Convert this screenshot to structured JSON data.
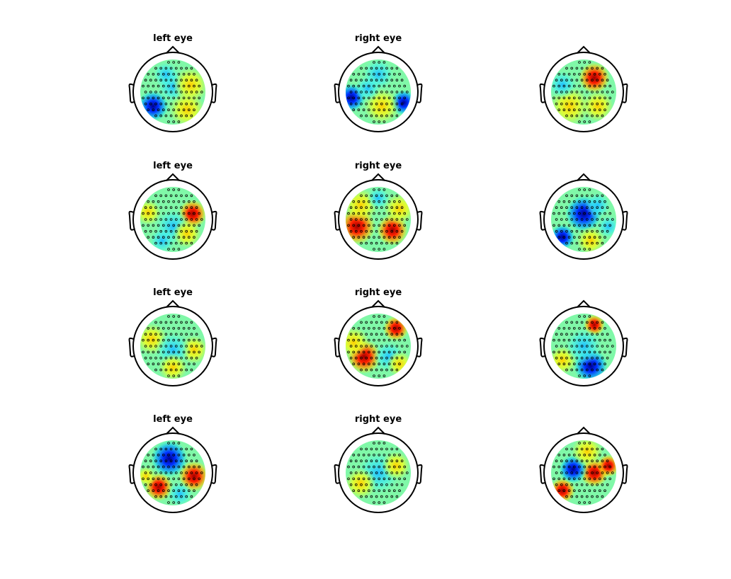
{
  "rows": [
    [
      "left eye",
      "right eye"
    ],
    [
      "left eye",
      "right eye"
    ],
    [
      "left eye",
      "right eye"
    ],
    [
      "left eye",
      "right eye"
    ]
  ]
}
